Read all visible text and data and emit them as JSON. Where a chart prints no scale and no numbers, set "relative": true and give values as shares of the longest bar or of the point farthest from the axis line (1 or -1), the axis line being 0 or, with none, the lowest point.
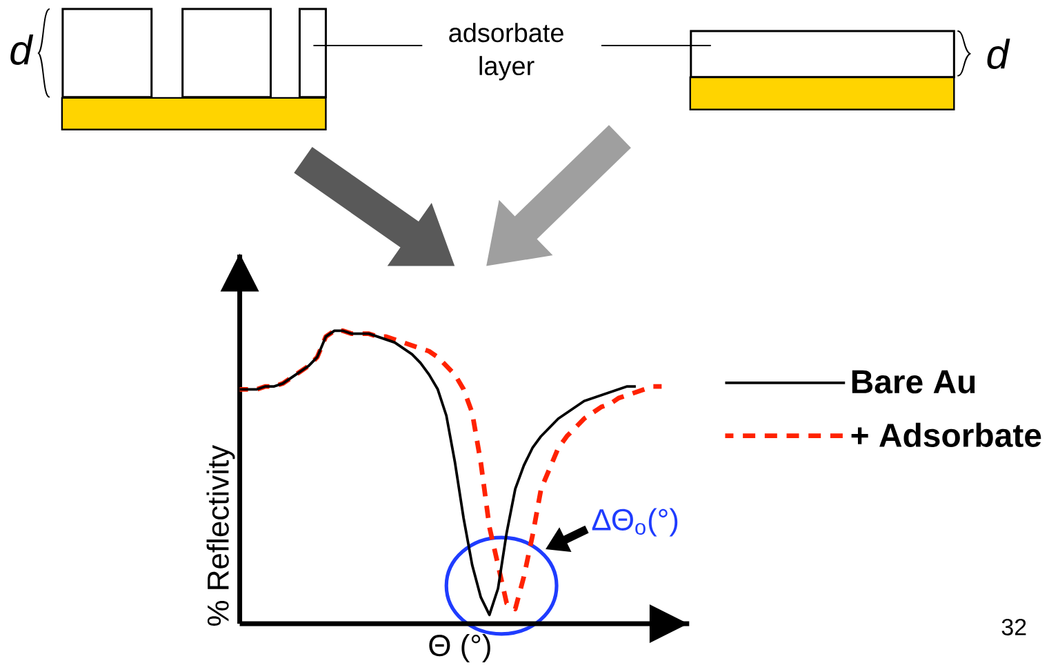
{
  "chart_data": {
    "type": "line",
    "relative": true,
    "xlabel": "Θ (°)",
    "ylabel": "% Reflectivity",
    "legend": "right",
    "marker": "none",
    "tick_labels": false,
    "categories": [
      null,
      null,
      null,
      null,
      null,
      null,
      null,
      null,
      null,
      null,
      null,
      null,
      null,
      null,
      null,
      null,
      null,
      null,
      null,
      null,
      null,
      null,
      null,
      null,
      null,
      null,
      null,
      null,
      null,
      null,
      null,
      null,
      null,
      null,
      null,
      null,
      null,
      null,
      null,
      null,
      null,
      null,
      null,
      null,
      null,
      null,
      null,
      null,
      null,
      null
    ],
    "series": [
      {
        "name": "Bare Au",
        "color": "#000000",
        "line_style": "solid",
        "values": [
          0.8,
          0.8,
          0.8,
          0.81,
          0.81,
          0.82,
          0.84,
          0.86,
          0.88,
          0.91,
          0.98,
          1.0,
          1.0,
          0.99,
          0.99,
          0.99,
          0.98,
          0.97,
          0.96,
          0.94,
          0.92,
          0.89,
          0.85,
          0.8,
          0.71,
          0.55,
          0.36,
          0.2,
          0.09,
          0.03,
          0.12,
          0.31,
          0.46,
          0.54,
          0.6,
          0.64,
          0.67,
          0.7,
          0.72,
          0.74,
          0.76,
          0.77,
          0.78,
          0.79,
          0.8,
          0.81,
          0.81,
          null,
          null,
          null
        ]
      },
      {
        "name": "+ Adsorbate",
        "color": "#ff2200",
        "line_style": "dashed",
        "values": [
          0.8,
          0.8,
          0.8,
          0.81,
          0.81,
          0.82,
          0.84,
          0.86,
          0.88,
          0.91,
          0.98,
          1.0,
          1.0,
          0.99,
          0.99,
          0.99,
          0.98,
          0.98,
          0.97,
          0.96,
          0.95,
          0.94,
          0.93,
          0.91,
          0.88,
          0.85,
          0.8,
          0.72,
          0.55,
          0.33,
          0.2,
          0.07,
          0.05,
          0.16,
          0.3,
          0.46,
          0.53,
          0.6,
          0.64,
          0.67,
          0.7,
          0.72,
          0.74,
          0.75,
          0.77,
          0.78,
          0.79,
          0.8,
          0.81,
          0.81
        ]
      }
    ],
    "annotations": [
      "d",
      "adsorbate layer",
      "d",
      "ΔΘ$_{o}$(°)",
      "32"
    ]
  }
}
